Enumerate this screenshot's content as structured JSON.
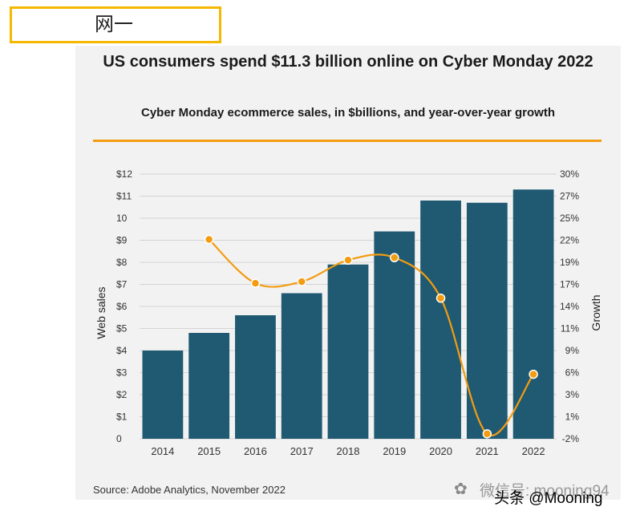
{
  "tag": {
    "label": "网一"
  },
  "chart_data": {
    "type": "bar",
    "title": "US consumers spend $11.3 billion online on Cyber Monday 2022",
    "subtitle": "Cyber Monday ecommerce sales, in $billions, and year-over-year growth",
    "categories": [
      "2014",
      "2015",
      "2016",
      "2017",
      "2018",
      "2019",
      "2020",
      "2021",
      "2022"
    ],
    "series": [
      {
        "name": "Web sales",
        "values": [
          4.0,
          4.8,
          5.6,
          6.6,
          7.9,
          9.4,
          10.8,
          10.7,
          11.3
        ],
        "color": "#1f5a72"
      },
      {
        "name": "Growth",
        "values": [
          null,
          22.1,
          16.8,
          17.0,
          19.6,
          19.9,
          15.0,
          -1.4,
          5.8
        ],
        "color": "#f39c12"
      }
    ],
    "ylabel": "Web sales",
    "y2label": "Growth",
    "ylim": [
      0,
      12
    ],
    "y2lim": [
      -2,
      30
    ],
    "y_ticks": [
      "0",
      "$1",
      "$2",
      "$3",
      "$4",
      "$5",
      "$6",
      "$7",
      "$8",
      "$9",
      "10",
      "$11",
      "$12"
    ],
    "y2_ticks": [
      "-2%",
      "1%",
      "3%",
      "6%",
      "9%",
      "11%",
      "14%",
      "17%",
      "19%",
      "22%",
      "25%",
      "27%",
      "30%"
    ],
    "grid": true
  },
  "source": "Source: Adobe Analytics, November 2022",
  "watermark": {
    "line1": "微信号: mooning94",
    "line2": "头条 @Mooning"
  }
}
